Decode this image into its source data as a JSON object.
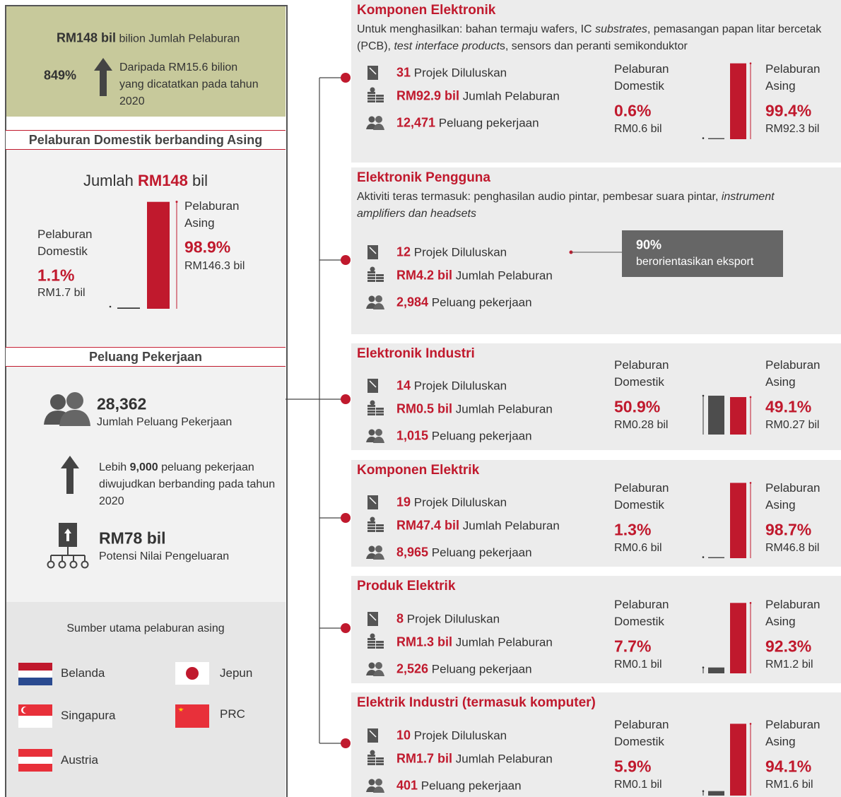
{
  "summary": {
    "total": "RM148 bil",
    "total_label": "bilion Jumlah Pelaburan",
    "growth": "849%",
    "growth_note": "Daripada RM15.6 bilion yang dicatatkan pada tahun 2020"
  },
  "split": {
    "title": "Pelaburan Domestik berbanding Asing",
    "total_prefix": "Jumlah",
    "total": "RM148",
    "total_suffix": "bil",
    "domestic": {
      "pct": 1.1,
      "pct_label": "1.1%",
      "amount": "RM1.7 bil"
    },
    "foreign": {
      "pct": 98.9,
      "pct_label": "98.9%",
      "amount": "RM146.3 bil"
    }
  },
  "jobs": {
    "title": "Peluang Pekerjaan",
    "total": "28,362",
    "total_label": "Jumlah Peluang Pekerjaan",
    "more_prefix": "Lebih",
    "more": "9,000",
    "more_suffix": "peluang pekerjaan diwujudkan berbanding pada tahun 2020",
    "output": "RM78 bil",
    "output_label": "Potensi Nilai Pengeluaran"
  },
  "sources": {
    "title": "Sumber utama pelaburan asing",
    "countries": [
      "Belanda",
      "Jepun",
      "Singapura",
      "PRC",
      "Austria"
    ]
  },
  "labels": {
    "projects": "Projek Diluluskan",
    "investment": "Jumlah Pelaburan",
    "jobs": "Peluang pekerjaan",
    "domestic": "Pelaburan Domestik",
    "foreign": "Pelaburan Asing"
  },
  "sectors": [
    {
      "title": "Komponen Elektronik",
      "desc": [
        {
          "text": "Untuk menghasilkan: bahan termaju wafers, IC ",
          "italic": false
        },
        {
          "text": "substrates",
          "italic": true
        },
        {
          "text": ", pemasangan papan litar bercetak (PCB), ",
          "italic": false
        },
        {
          "text": "test interface product",
          "italic": true
        },
        {
          "text": "s, sensors dan peranti semikonduktor",
          "italic": false
        }
      ],
      "projects": "31",
      "investment": "RM92.9 bil",
      "jobs": "12,471",
      "split": {
        "domestic_pct": 0.6,
        "domestic_pct_label": "0.6%",
        "domestic_amount": "RM0.6 bil",
        "foreign_pct": 99.4,
        "foreign_pct_label": "99.4%",
        "foreign_amount": "RM92.3 bil"
      }
    },
    {
      "title": "Elektronik Pengguna",
      "desc": [
        {
          "text": "Aktiviti teras termasuk: penghasilan audio pintar, pembesar suara pintar, ",
          "italic": false
        },
        {
          "text": "instrument amplifiers dan headsets",
          "italic": true
        }
      ],
      "projects": "12",
      "investment": "RM4.2 bil",
      "jobs": "2,984",
      "callout": {
        "value": "90%",
        "label": "berorientasikan eksport"
      }
    },
    {
      "title": "Elektronik Industri",
      "projects": "14",
      "investment": "RM0.5 bil",
      "jobs": "1,015",
      "split": {
        "domestic_pct": 50.9,
        "domestic_pct_label": "50.9%",
        "domestic_amount": "RM0.28 bil",
        "foreign_pct": 49.1,
        "foreign_pct_label": "49.1%",
        "foreign_amount": "RM0.27 bil"
      }
    },
    {
      "title": "Komponen Elektrik",
      "projects": "19",
      "investment": "RM47.4 bil",
      "jobs": "8,965",
      "split": {
        "domestic_pct": 1.3,
        "domestic_pct_label": "1.3%",
        "domestic_amount": "RM0.6 bil",
        "foreign_pct": 98.7,
        "foreign_pct_label": "98.7%",
        "foreign_amount": "RM46.8 bil"
      }
    },
    {
      "title": "Produk Elektrik",
      "projects": "8",
      "investment": "RM1.3 bil",
      "jobs": "2,526",
      "split": {
        "domestic_pct": 7.7,
        "domestic_pct_label": "7.7%",
        "domestic_amount": "RM0.1 bil",
        "foreign_pct": 92.3,
        "foreign_pct_label": "92.3%",
        "foreign_amount": "RM1.2 bil"
      }
    },
    {
      "title": "Elektrik Industri (termasuk komputer)",
      "projects": "10",
      "investment": "RM1.7 bil",
      "jobs": "401",
      "split": {
        "domestic_pct": 5.9,
        "domestic_pct_label": "5.9%",
        "domestic_amount": "RM0.1 bil",
        "foreign_pct": 94.1,
        "foreign_pct_label": "94.1%",
        "foreign_amount": "RM1.6 bil"
      }
    }
  ]
}
